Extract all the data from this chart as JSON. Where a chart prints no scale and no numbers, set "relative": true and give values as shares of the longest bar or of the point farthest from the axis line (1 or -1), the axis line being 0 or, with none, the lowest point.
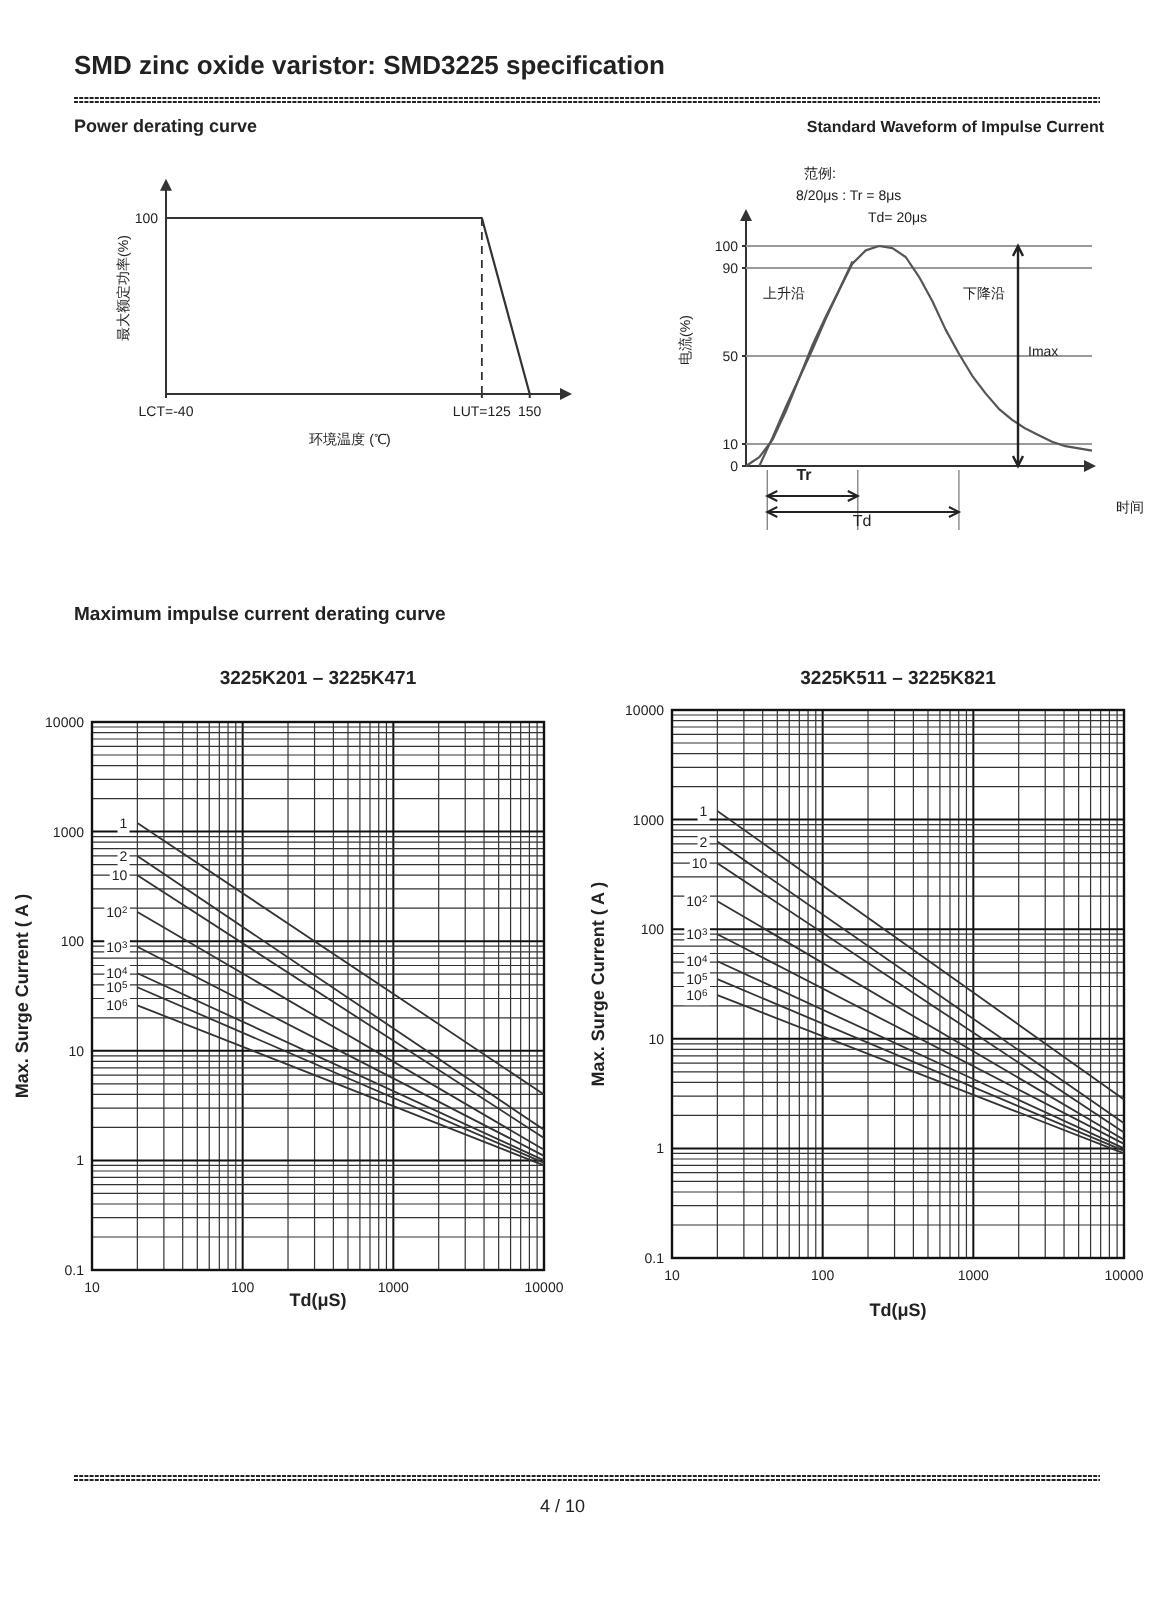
{
  "chart_data": [
    {
      "type": "line",
      "title": "Power derating curve",
      "xlabel": "环境温度 (℃)",
      "ylabel": "最大额定功率(%)",
      "annotations": [
        "SMD zinc oxide varistor: SMD3225 specification",
        "100"
      ],
      "relative": true,
      "xlim": [
        -40,
        170
      ],
      "xticks": [
        {
          "value": -40,
          "label": "LCT=-40"
        },
        {
          "value": 125,
          "label": "LUT=125"
        },
        150
      ],
      "x": [
        -40,
        125,
        150
      ],
      "series": [
        {
          "color": "#333333",
          "values": [
            1,
            1,
            0
          ]
        }
      ],
      "ref_lines": [
        {
          "axis": "x",
          "value": 125,
          "line_style": "dashed",
          "color": "#333333"
        }
      ]
    },
    {
      "type": "line",
      "title": "Standard Waveform of Impulse Current",
      "xlabel": "时间",
      "ylabel": "电流(%)",
      "annotations": [
        "范例:",
        "8/20μs : Tr = 8μs",
        "Td= 20μs",
        "上升沿",
        "下降沿",
        "Imax",
        "Tr",
        "Td"
      ],
      "ylim": [
        0,
        115
      ],
      "yticks": [
        0,
        10,
        50,
        90,
        100
      ],
      "categories": [
        null,
        null,
        null,
        null,
        null,
        null,
        null,
        null,
        null,
        null,
        null,
        null,
        null,
        null,
        null,
        null,
        null,
        null,
        null,
        null,
        null,
        null,
        null,
        null,
        null,
        null,
        null
      ],
      "series": [
        {
          "color": "#555555",
          "values": [
            0,
            4,
            12,
            25,
            40,
            55,
            68,
            80,
            92,
            98,
            100,
            99,
            95,
            86,
            75,
            62,
            51,
            41,
            33,
            26,
            21,
            17,
            14,
            11,
            9,
            8,
            7
          ]
        },
        {
          "color": "#555555",
          "values": [
            null,
            0,
            13,
            27,
            40,
            53,
            67,
            80,
            93,
            null,
            null,
            null,
            null,
            null,
            null,
            null,
            null,
            null,
            null,
            null,
            null,
            null,
            null,
            null,
            null,
            null,
            null
          ]
        }
      ],
      "ref_lines": [
        {
          "axis": "y",
          "value": 100,
          "color": "#999999"
        },
        {
          "axis": "y",
          "value": 90,
          "color": "#999999"
        },
        {
          "axis": "y",
          "value": 50,
          "color": "#999999"
        },
        {
          "axis": "y",
          "value": 10,
          "color": "#999999"
        }
      ]
    },
    {
      "type": "line",
      "title": "3225K201 – 3225K471",
      "xlabel": "Td(μS)",
      "ylabel": "Max.  Surge  Current  ( A )",
      "annotations": [
        "Maximum impulse current derating curve"
      ],
      "log": "xy",
      "grid": true,
      "xlim": [
        10,
        10000
      ],
      "ylim": [
        0.1,
        10000
      ],
      "xticks": [
        10,
        100,
        1000,
        10000
      ],
      "yticks": [
        0.1,
        1,
        10,
        100,
        1000,
        10000
      ],
      "x": [
        20,
        10000
      ],
      "series": [
        {
          "name": "1",
          "color": "#333333",
          "values": [
            1200,
            4
          ]
        },
        {
          "name": "2",
          "color": "#333333",
          "values": [
            600,
            1.9
          ]
        },
        {
          "name": "10",
          "color": "#333333",
          "values": [
            400,
            1.6
          ]
        },
        {
          "name": "10$^{2}$",
          "color": "#333333",
          "values": [
            185,
            1.25
          ]
        },
        {
          "name": "10$^{3}$",
          "color": "#333333",
          "values": [
            89,
            1.1
          ]
        },
        {
          "name": "10$^{4}$",
          "color": "#333333",
          "values": [
            51,
            1
          ]
        },
        {
          "name": "10$^{5}$",
          "color": "#333333",
          "values": [
            38,
            0.95
          ]
        },
        {
          "name": "10$^{6}$",
          "color": "#333333",
          "values": [
            26,
            0.9
          ]
        }
      ]
    },
    {
      "type": "line",
      "title": "3225K511 – 3225K821",
      "xlabel": "Td(μS)",
      "ylabel": "Max.  Surge  Current  ( A )",
      "annotations": [
        "4 / 10"
      ],
      "log": "xy",
      "grid": true,
      "xlim": [
        10,
        10000
      ],
      "ylim": [
        0.1,
        10000
      ],
      "xticks": [
        10,
        100,
        1000,
        10000
      ],
      "yticks": [
        0.1,
        1,
        10,
        100,
        1000,
        10000
      ],
      "x": [
        20,
        10000
      ],
      "series": [
        {
          "name": "1",
          "color": "#333333",
          "values": [
            1200,
            2.8
          ]
        },
        {
          "name": "2",
          "color": "#333333",
          "values": [
            630,
            1.7
          ]
        },
        {
          "name": "10",
          "color": "#333333",
          "values": [
            400,
            1.4
          ]
        },
        {
          "name": "10$^{2}$",
          "color": "#333333",
          "values": [
            180,
            1.2
          ]
        },
        {
          "name": "10$^{3}$",
          "color": "#333333",
          "values": [
            90,
            1.1
          ]
        },
        {
          "name": "10$^{4}$",
          "color": "#333333",
          "values": [
            51,
            1
          ]
        },
        {
          "name": "10$^{5}$",
          "color": "#333333",
          "values": [
            35,
            0.95
          ]
        },
        {
          "name": "10$^{6}$",
          "color": "#333333",
          "values": [
            25,
            0.9
          ]
        }
      ]
    }
  ]
}
